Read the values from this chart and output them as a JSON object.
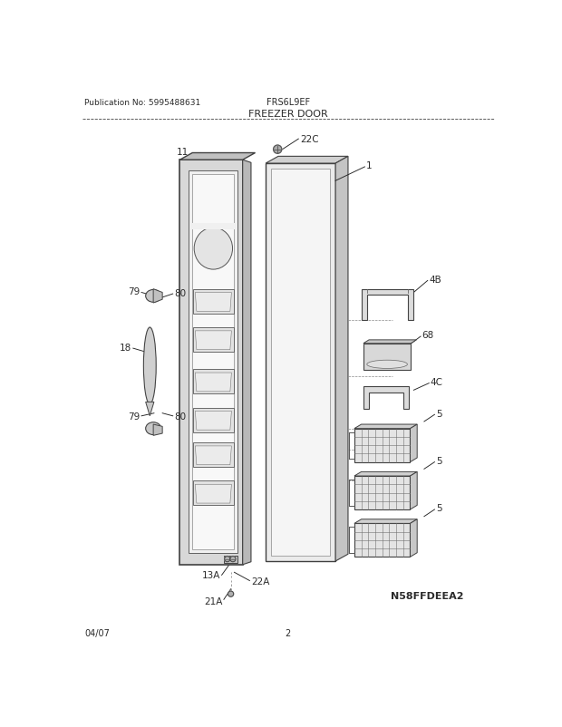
{
  "title": "FREEZER DOOR",
  "pub_no": "Publication No: 5995488631",
  "model": "FRS6L9EF",
  "diagram_id": "N58FFDEEA2",
  "date": "04/07",
  "page": "2",
  "bg_color": "#ffffff",
  "text_color": "#2a2a2a",
  "line_color": "#404040"
}
